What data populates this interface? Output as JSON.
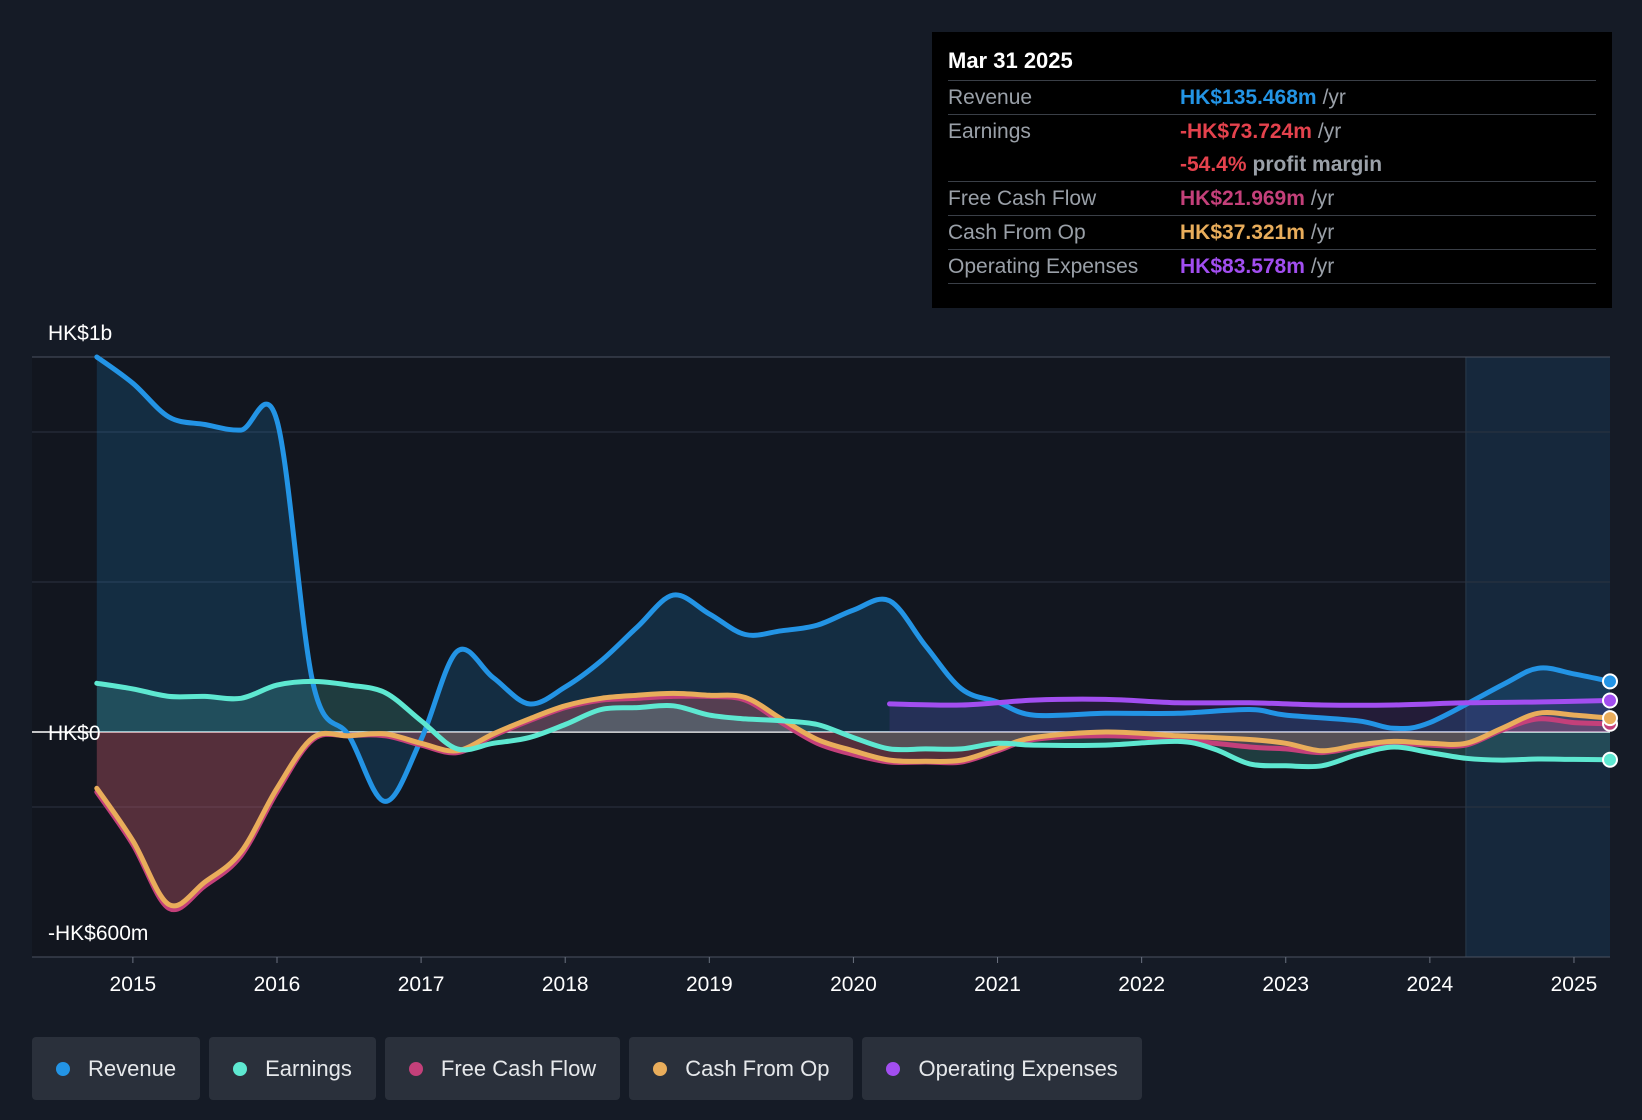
{
  "tooltip": {
    "date": "Mar 31 2025",
    "revenue_label": "Revenue",
    "revenue_value": "HK$135.468m",
    "earnings_label": "Earnings",
    "earnings_value": "-HK$73.724m",
    "margin_value": "-54.4%",
    "margin_text": "profit margin",
    "fcf_label": "Free Cash Flow",
    "fcf_value": "HK$21.969m",
    "cfo_label": "Cash From Op",
    "cfo_value": "HK$37.321m",
    "opex_label": "Operating Expenses",
    "opex_value": "HK$83.578m",
    "unit": "/yr"
  },
  "legend": [
    {
      "label": "Revenue",
      "color": "#2394e5"
    },
    {
      "label": "Earnings",
      "color": "#5ee8d1"
    },
    {
      "label": "Free Cash Flow",
      "color": "#c4407a"
    },
    {
      "label": "Cash From Op",
      "color": "#e9ad5b"
    },
    {
      "label": "Operating Expenses",
      "color": "#a24ef0"
    }
  ],
  "colors": {
    "revenue": "#2394e5",
    "earnings": "#5ee8d1",
    "fcf": "#c4407a",
    "cfo": "#e9ad5b",
    "opex": "#a24ef0",
    "loss": "#e4424d",
    "background": "#151b26"
  },
  "chart_data": {
    "type": "line",
    "title": "",
    "y_top_label": "HK$1b",
    "y_zero_label": "HK$0",
    "y_bottom_label": "-HK$600m",
    "ylim": [
      -600,
      1000
    ],
    "xlim": [
      2014.3,
      2025.25
    ],
    "x_ticks": [
      2015,
      2016,
      2017,
      2018,
      2019,
      2020,
      2021,
      2022,
      2023,
      2024,
      2025
    ],
    "forecast_start": 2024.25,
    "series": [
      {
        "name": "Revenue",
        "key": "revenue",
        "points": [
          [
            2014.75,
            1000
          ],
          [
            2015.0,
            930
          ],
          [
            2015.25,
            840
          ],
          [
            2015.5,
            820
          ],
          [
            2015.75,
            805
          ],
          [
            2016.0,
            830
          ],
          [
            2016.25,
            130
          ],
          [
            2016.5,
            -10
          ],
          [
            2016.75,
            -185
          ],
          [
            2017.0,
            -20
          ],
          [
            2017.25,
            215
          ],
          [
            2017.5,
            145
          ],
          [
            2017.75,
            75
          ],
          [
            2018.0,
            120
          ],
          [
            2018.25,
            190
          ],
          [
            2018.5,
            280
          ],
          [
            2018.75,
            365
          ],
          [
            2019.0,
            315
          ],
          [
            2019.25,
            260
          ],
          [
            2019.5,
            270
          ],
          [
            2019.75,
            285
          ],
          [
            2020.0,
            325
          ],
          [
            2020.25,
            350
          ],
          [
            2020.5,
            230
          ],
          [
            2020.75,
            115
          ],
          [
            2021.0,
            80
          ],
          [
            2021.25,
            45
          ],
          [
            2021.75,
            50
          ],
          [
            2022.25,
            50
          ],
          [
            2022.75,
            60
          ],
          [
            2023.0,
            45
          ],
          [
            2023.5,
            30
          ],
          [
            2023.75,
            10
          ],
          [
            2024.0,
            25
          ],
          [
            2024.5,
            125
          ],
          [
            2024.75,
            170
          ],
          [
            2025.0,
            155
          ],
          [
            2025.25,
            135
          ]
        ]
      },
      {
        "name": "Earnings",
        "key": "earnings",
        "points": [
          [
            2014.75,
            130
          ],
          [
            2015.0,
            115
          ],
          [
            2015.25,
            95
          ],
          [
            2015.5,
            95
          ],
          [
            2015.75,
            90
          ],
          [
            2016.0,
            125
          ],
          [
            2016.25,
            135
          ],
          [
            2016.5,
            125
          ],
          [
            2016.75,
            105
          ],
          [
            2017.0,
            30
          ],
          [
            2017.25,
            -45
          ],
          [
            2017.5,
            -30
          ],
          [
            2017.75,
            -15
          ],
          [
            2018.0,
            20
          ],
          [
            2018.25,
            60
          ],
          [
            2018.5,
            65
          ],
          [
            2018.75,
            70
          ],
          [
            2019.0,
            45
          ],
          [
            2019.25,
            35
          ],
          [
            2019.5,
            30
          ],
          [
            2019.75,
            20
          ],
          [
            2020.0,
            -15
          ],
          [
            2020.25,
            -45
          ],
          [
            2020.5,
            -45
          ],
          [
            2020.75,
            -45
          ],
          [
            2021.0,
            -30
          ],
          [
            2021.25,
            -35
          ],
          [
            2021.75,
            -35
          ],
          [
            2022.25,
            -25
          ],
          [
            2022.5,
            -45
          ],
          [
            2022.75,
            -85
          ],
          [
            2023.0,
            -90
          ],
          [
            2023.25,
            -90
          ],
          [
            2023.5,
            -60
          ],
          [
            2023.75,
            -40
          ],
          [
            2024.0,
            -55
          ],
          [
            2024.25,
            -70
          ],
          [
            2024.5,
            -75
          ],
          [
            2024.75,
            -72
          ],
          [
            2025.0,
            -73
          ],
          [
            2025.25,
            -74
          ]
        ]
      },
      {
        "name": "Free Cash Flow",
        "key": "fcf",
        "points": [
          [
            2014.75,
            -160
          ],
          [
            2015.0,
            -300
          ],
          [
            2015.25,
            -470
          ],
          [
            2015.5,
            -410
          ],
          [
            2015.75,
            -330
          ],
          [
            2016.0,
            -160
          ],
          [
            2016.25,
            -20
          ],
          [
            2016.5,
            -10
          ],
          [
            2016.75,
            -10
          ],
          [
            2017.0,
            -35
          ],
          [
            2017.25,
            -55
          ],
          [
            2017.5,
            -10
          ],
          [
            2017.75,
            30
          ],
          [
            2018.0,
            65
          ],
          [
            2018.25,
            85
          ],
          [
            2018.5,
            90
          ],
          [
            2018.75,
            95
          ],
          [
            2019.0,
            95
          ],
          [
            2019.25,
            85
          ],
          [
            2019.5,
            25
          ],
          [
            2019.75,
            -30
          ],
          [
            2020.0,
            -60
          ],
          [
            2020.25,
            -80
          ],
          [
            2020.5,
            -80
          ],
          [
            2020.75,
            -80
          ],
          [
            2021.0,
            -50
          ],
          [
            2021.25,
            -20
          ],
          [
            2021.75,
            -10
          ],
          [
            2022.25,
            -20
          ],
          [
            2022.75,
            -40
          ],
          [
            2023.0,
            -45
          ],
          [
            2023.25,
            -55
          ],
          [
            2023.5,
            -40
          ],
          [
            2023.75,
            -30
          ],
          [
            2024.0,
            -35
          ],
          [
            2024.25,
            -35
          ],
          [
            2024.5,
            5
          ],
          [
            2024.75,
            35
          ],
          [
            2025.0,
            25
          ],
          [
            2025.25,
            22
          ]
        ]
      },
      {
        "name": "Cash From Op",
        "key": "cfo",
        "points": [
          [
            2014.75,
            -150
          ],
          [
            2015.0,
            -290
          ],
          [
            2015.25,
            -460
          ],
          [
            2015.5,
            -400
          ],
          [
            2015.75,
            -320
          ],
          [
            2016.0,
            -150
          ],
          [
            2016.25,
            -15
          ],
          [
            2016.5,
            -10
          ],
          [
            2016.75,
            -5
          ],
          [
            2017.0,
            -30
          ],
          [
            2017.25,
            -50
          ],
          [
            2017.5,
            -5
          ],
          [
            2017.75,
            35
          ],
          [
            2018.0,
            70
          ],
          [
            2018.25,
            90
          ],
          [
            2018.5,
            98
          ],
          [
            2018.75,
            103
          ],
          [
            2019.0,
            98
          ],
          [
            2019.25,
            92
          ],
          [
            2019.5,
            35
          ],
          [
            2019.75,
            -20
          ],
          [
            2020.0,
            -50
          ],
          [
            2020.25,
            -75
          ],
          [
            2020.5,
            -78
          ],
          [
            2020.75,
            -75
          ],
          [
            2021.0,
            -45
          ],
          [
            2021.25,
            -15
          ],
          [
            2021.75,
            0
          ],
          [
            2022.25,
            -10
          ],
          [
            2022.75,
            -20
          ],
          [
            2023.0,
            -30
          ],
          [
            2023.25,
            -50
          ],
          [
            2023.5,
            -35
          ],
          [
            2023.75,
            -25
          ],
          [
            2024.0,
            -30
          ],
          [
            2024.25,
            -30
          ],
          [
            2024.5,
            10
          ],
          [
            2024.75,
            50
          ],
          [
            2025.0,
            45
          ],
          [
            2025.25,
            37
          ]
        ]
      },
      {
        "name": "Operating Expenses",
        "key": "opex",
        "points": [
          [
            2020.25,
            75
          ],
          [
            2020.75,
            72
          ],
          [
            2021.25,
            85
          ],
          [
            2021.75,
            87
          ],
          [
            2022.25,
            78
          ],
          [
            2022.75,
            78
          ],
          [
            2023.25,
            72
          ],
          [
            2023.75,
            72
          ],
          [
            2024.25,
            78
          ],
          [
            2024.75,
            80
          ],
          [
            2025.25,
            84
          ]
        ]
      }
    ]
  }
}
